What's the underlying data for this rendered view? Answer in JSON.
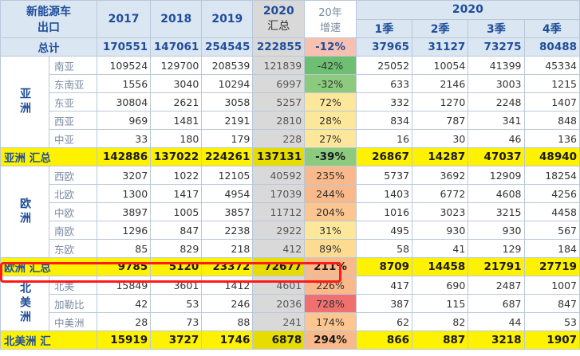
{
  "header": {
    "title_line1": "新能源车",
    "title_line2": "出口",
    "y2017": "2017",
    "y2018": "2018",
    "y2019": "2019",
    "y2020_line1": "2020",
    "y2020_line2": "汇总",
    "growth_line1": "20年",
    "growth_line2": "增速",
    "group2020": "2020",
    "q1": "1季",
    "q2": "2季",
    "q3": "3季",
    "q4": "4季"
  },
  "total": {
    "name": "总计",
    "v": [
      "170551",
      "147061",
      "254545",
      "222855",
      "-12%",
      "37965",
      "31127",
      "73275",
      "80488"
    ],
    "color": "#f8c0b0"
  },
  "asia": {
    "label": "亚洲",
    "rows": [
      {
        "name": "南亚",
        "v": [
          "109524",
          "129700",
          "208539",
          "121839",
          "-42%",
          "25052",
          "10054",
          "41399",
          "45334"
        ],
        "color": "#6fbf73"
      },
      {
        "name": "东南亚",
        "v": [
          "1556",
          "3040",
          "10294",
          "6997",
          "-32%",
          "633",
          "2146",
          "3003",
          "1215"
        ],
        "color": "#8ccb7e"
      },
      {
        "name": "东亚",
        "v": [
          "30804",
          "2621",
          "3058",
          "5257",
          "72%",
          "332",
          "1270",
          "2248",
          "1407"
        ],
        "color": "#fde79a"
      },
      {
        "name": "西亚",
        "v": [
          "969",
          "1481",
          "2191",
          "2810",
          "28%",
          "834",
          "787",
          "341",
          "848"
        ],
        "color": "#fde79a"
      },
      {
        "name": "中亚",
        "v": [
          "33",
          "180",
          "179",
          "228",
          "27%",
          "16",
          "30",
          "46",
          "136"
        ],
        "color": "#fde79a"
      }
    ],
    "sum": {
      "name": "亚洲 汇总",
      "v": [
        "142886",
        "137022",
        "224261",
        "137131",
        "-39%",
        "26867",
        "14287",
        "47037",
        "48940"
      ],
      "color": "#8ccb7e"
    }
  },
  "europe": {
    "label": "欧洲",
    "rows": [
      {
        "name": "西欧",
        "v": [
          "3207",
          "1022",
          "12105",
          "40592",
          "235%",
          "5737",
          "3692",
          "12909",
          "18254"
        ],
        "color": "#f9b98a"
      },
      {
        "name": "北欧",
        "v": [
          "1300",
          "1417",
          "4954",
          "17039",
          "244%",
          "1403",
          "6772",
          "4608",
          "4256"
        ],
        "color": "#f9b98a"
      },
      {
        "name": "中欧",
        "v": [
          "3897",
          "1005",
          "3857",
          "11712",
          "204%",
          "1016",
          "3023",
          "3215",
          "4458"
        ],
        "color": "#fbc68f"
      },
      {
        "name": "南欧",
        "v": [
          "1296",
          "847",
          "2238",
          "2922",
          "31%",
          "495",
          "930",
          "930",
          "567"
        ],
        "color": "#fde79a"
      },
      {
        "name": "东欧",
        "v": [
          "85",
          "829",
          "218",
          "412",
          "89%",
          "58",
          "41",
          "129",
          "184"
        ],
        "color": "#fddc92"
      }
    ],
    "sum": {
      "name": "欧洲 汇总",
      "v": [
        "9785",
        "5120",
        "23372",
        "72677",
        "211%",
        "8709",
        "14458",
        "21791",
        "27719"
      ],
      "color": "#f9b98a"
    }
  },
  "america": {
    "label": "北美洲",
    "rows": [
      {
        "name": "北美",
        "v": [
          "15849",
          "3601",
          "1412",
          "4601",
          "226%",
          "417",
          "690",
          "2487",
          "1007"
        ],
        "color": "#f9b98a"
      },
      {
        "name": "加勒比",
        "v": [
          "42",
          "53",
          "246",
          "2036",
          "728%",
          "387",
          "115",
          "687",
          "847"
        ],
        "color": "#f07070"
      },
      {
        "name": "中美洲",
        "v": [
          "28",
          "73",
          "88",
          "241",
          "174%",
          "62",
          "82",
          "44",
          "53"
        ],
        "color": "#fbc68f"
      }
    ],
    "sum": {
      "name": "北美洲 汇",
      "v": [
        "15919",
        "3727",
        "1746",
        "6878",
        "294%",
        "866",
        "887",
        "3218",
        "1907"
      ],
      "color": "#f9b98a"
    }
  }
}
